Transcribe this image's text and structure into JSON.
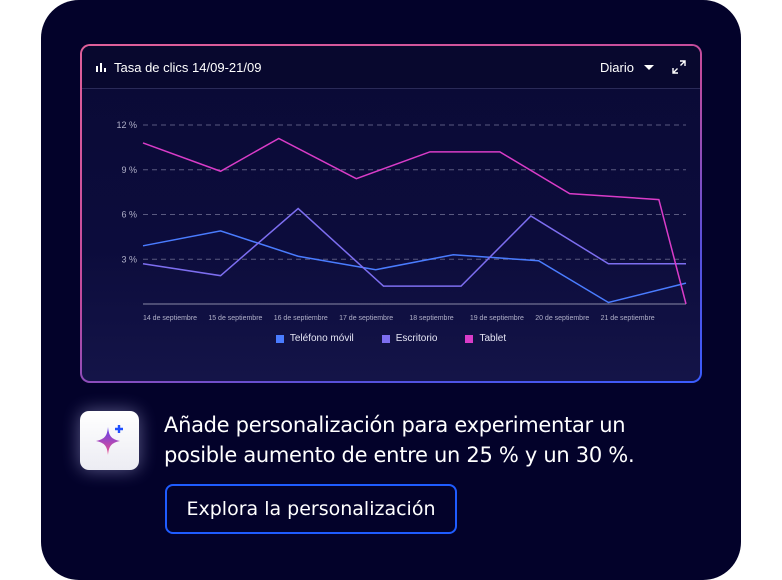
{
  "card": {
    "title": "Tasa de clics 14/09-21/09",
    "period": "Diario",
    "icons": {
      "title": "bar-chart-icon",
      "dropdown": "caret-down-icon",
      "expand": "expand-icon"
    }
  },
  "chart_data": {
    "type": "line",
    "ylim": [
      0,
      12
    ],
    "yticks": [
      3,
      6,
      9,
      12
    ],
    "ytick_labels": [
      "3 %",
      "6 %",
      "9 %",
      "12 %"
    ],
    "grid": true,
    "legend_position": "bottom",
    "xlim": [
      14,
      21
    ],
    "x_tick_labels": [
      "14 de septiembre",
      "15 de septiembre",
      "16 de septiembre",
      "17 de septiembre",
      "18 septiembre",
      "19 de septiembre",
      "20 de septiembre",
      "21 de septiembre"
    ],
    "series": [
      {
        "name": "Teléfono móvil",
        "color": "#4a7cff",
        "x": [
          14,
          15,
          16,
          17,
          18,
          19.1,
          20,
          21
        ],
        "y": [
          3.9,
          4.9,
          3.2,
          2.3,
          3.3,
          2.9,
          0.1,
          1.4
        ]
      },
      {
        "name": "Escritorio",
        "color": "#7d6ef0",
        "x": [
          14,
          15,
          16,
          17.1,
          18.1,
          19,
          20,
          21
        ],
        "y": [
          2.7,
          1.9,
          6.4,
          1.2,
          1.2,
          5.9,
          2.7,
          2.7
        ]
      },
      {
        "name": "Tablet",
        "color": "#d93cc8",
        "x": [
          14,
          15,
          15.75,
          16.75,
          17.7,
          18.6,
          19.5,
          20.65,
          21
        ],
        "y": [
          10.8,
          8.9,
          11.1,
          8.4,
          10.2,
          10.2,
          7.4,
          7.0,
          0
        ]
      }
    ]
  },
  "promo": {
    "icon": "sparkle-plus-icon",
    "message": "Añade personalización para experimentar un posible aumento de entre un 25 % y un 30 %.",
    "button": "Explora la personalización"
  }
}
